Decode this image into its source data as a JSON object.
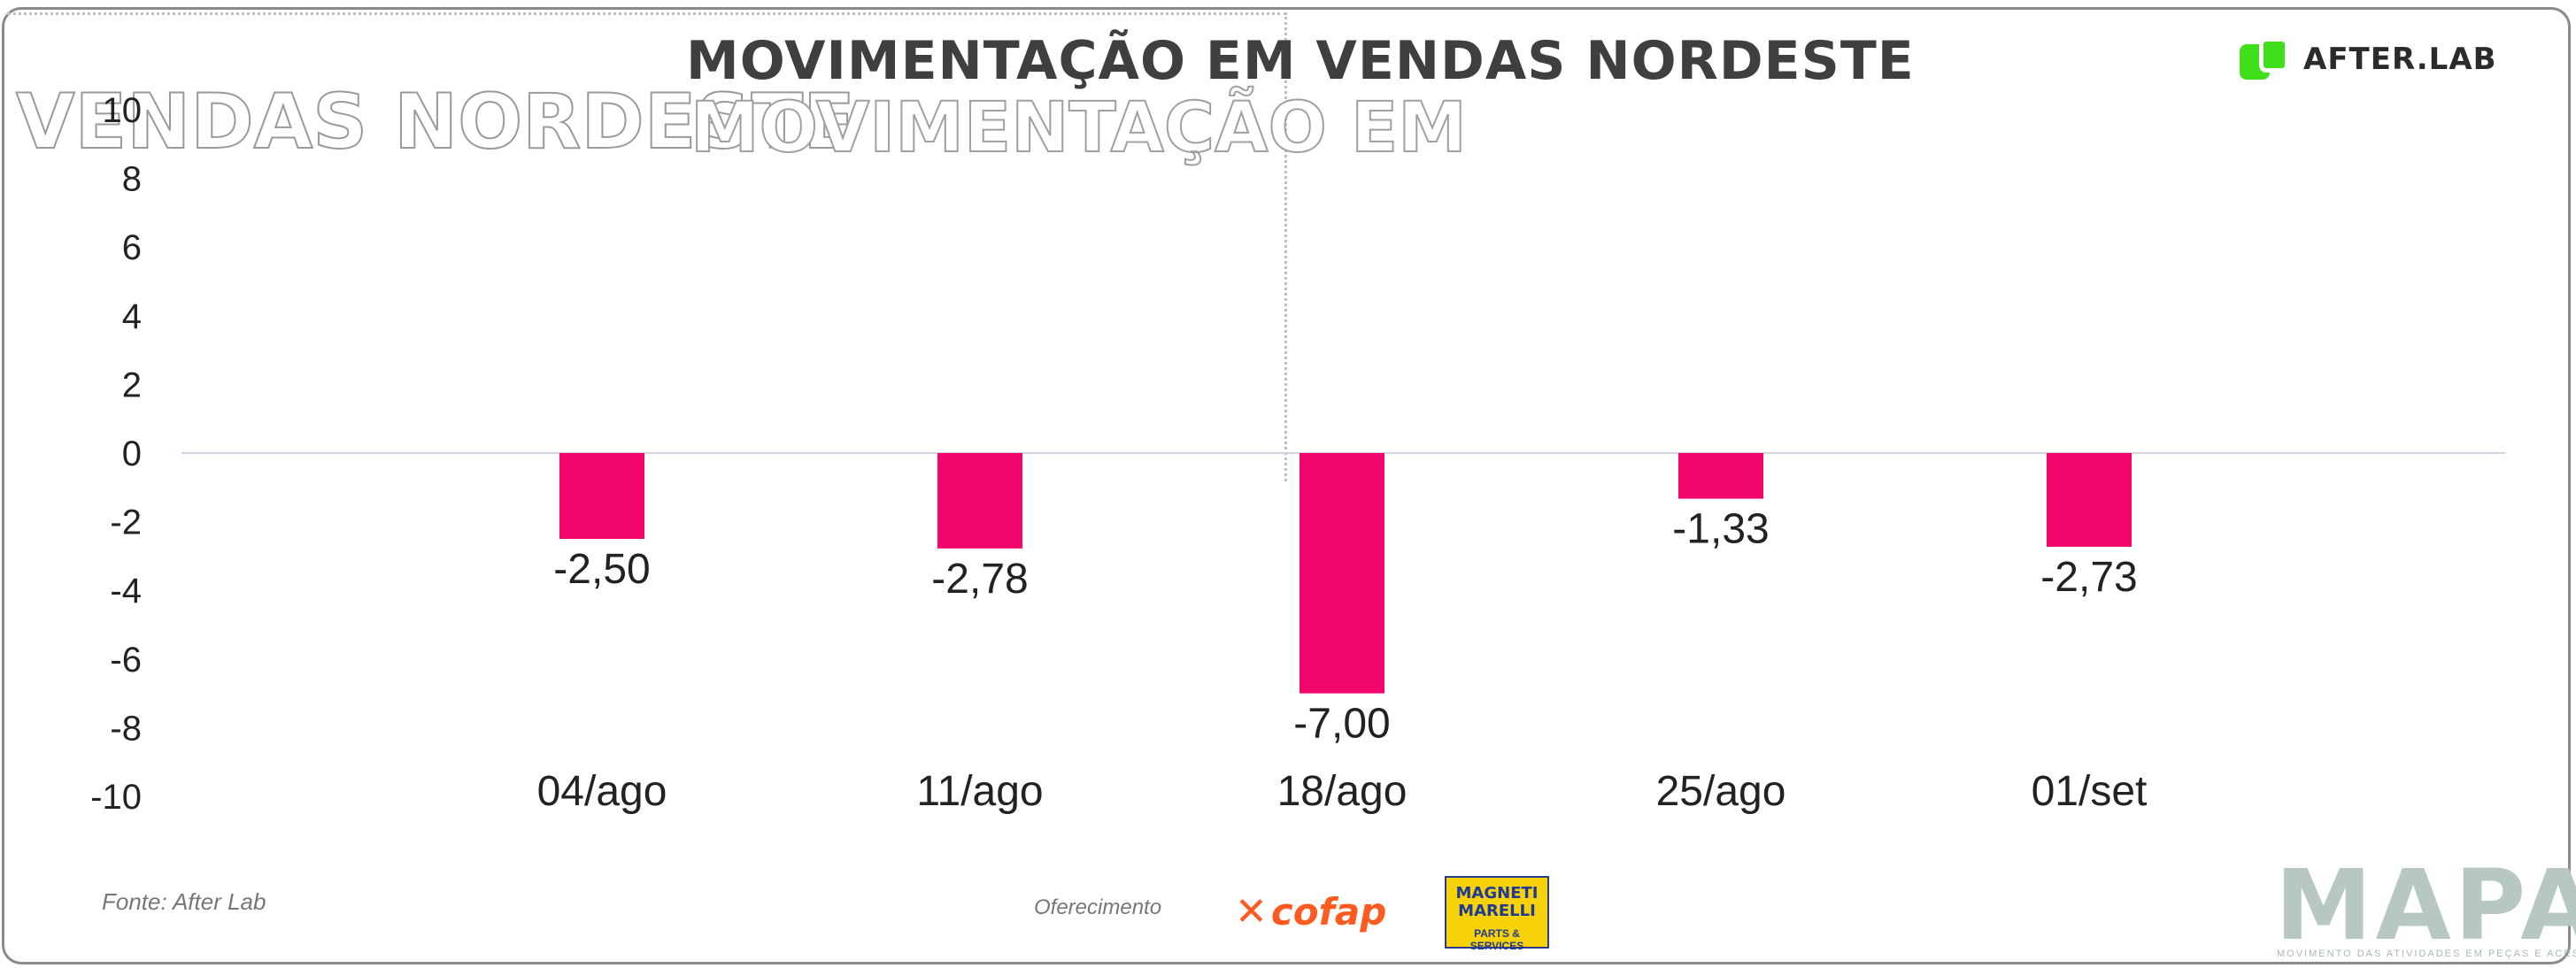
{
  "chart_data": {
    "type": "bar",
    "title": "MOVIMENTAÇÃO EM VENDAS NORDESTE",
    "categories": [
      "04/ago",
      "11/ago",
      "18/ago",
      "25/ago",
      "01/set"
    ],
    "values": [
      -2.5,
      -2.78,
      -7.0,
      -1.33,
      -2.73
    ],
    "value_labels": [
      "-2,50",
      "-2,78",
      "-7,00",
      "-1,33",
      "-2,73"
    ],
    "ylim": [
      -10,
      10
    ],
    "yticks": [
      10,
      8,
      6,
      4,
      2,
      0,
      -2,
      -4,
      -6,
      -8,
      -10
    ],
    "xlabel": "",
    "ylabel": "",
    "grid": false,
    "bar_color": "#f2066c",
    "zero_line_color": "#c9d6de"
  },
  "header": {
    "title": "MOVIMENTAÇÃO EM VENDAS NORDESTE",
    "ghost_text_left": "VENDAS NORDESTE",
    "ghost_text_right": "MOVIMENTAÇÃO EM",
    "brand": "AFTER.LAB",
    "brand_color": "#3fe01a"
  },
  "footer": {
    "source": "Fonte: After Lab",
    "sponsor_label": "Oferecimento",
    "sponsor1": "cofap",
    "sponsor2_line1": "MAGNETI MARELLI",
    "sponsor2_line2": "PARTS & SERVICES",
    "mapa": "MAPA",
    "mapa_sub": "MOVIMENTO DAS ATIVIDADES EM PEÇAS E ACESSÓRIOS"
  }
}
